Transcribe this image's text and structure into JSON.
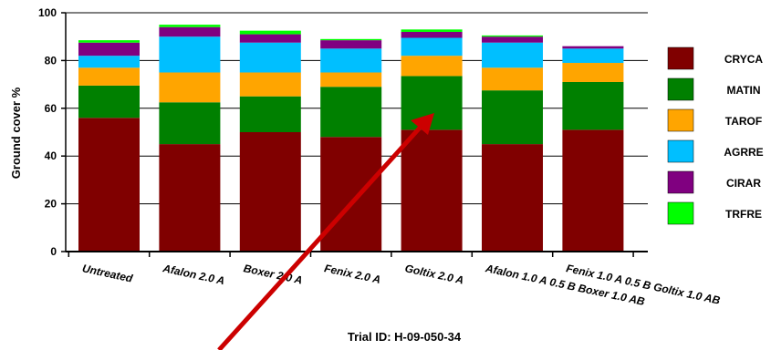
{
  "chart_data": {
    "type": "bar",
    "stacked": true,
    "title": "",
    "ylabel": "Ground cover %",
    "xlabel": "Trial ID: H-09-050-34",
    "ylim": [
      0,
      100
    ],
    "yticks": [
      0,
      20,
      40,
      60,
      80,
      100
    ],
    "grid": true,
    "legend_position": "right",
    "categories": [
      "Untreated",
      "Afalon 2.0 A",
      "Boxer 2.0 A",
      "Fenix 2.0 A",
      "Goltix 2.0 A",
      "Afalon 1.0 A 0.5 B Boxer 1.0 AB",
      "Fenix 1.0 A 0.5 B Goltix 1.0 AB"
    ],
    "series": [
      {
        "name": "CRYCA",
        "color": "#800000",
        "values": [
          56,
          45,
          50,
          48,
          51,
          45,
          51
        ]
      },
      {
        "name": "MATIN",
        "color": "#008000",
        "values": [
          13.5,
          17.5,
          15,
          21,
          22.5,
          22.5,
          20
        ]
      },
      {
        "name": "TAROF",
        "color": "#ffa500",
        "values": [
          7.5,
          12.5,
          10,
          6,
          8.5,
          9.5,
          8
        ]
      },
      {
        "name": "AGRRE",
        "color": "#00bfff",
        "values": [
          5,
          15,
          12.5,
          10,
          7.5,
          10.5,
          6
        ]
      },
      {
        "name": "CIRAR",
        "color": "#800080",
        "values": [
          5.5,
          4,
          3.5,
          3.5,
          2.5,
          2.5,
          1
        ]
      },
      {
        "name": "TRFRE",
        "color": "#00ff00",
        "values": [
          1,
          1,
          1.5,
          0.5,
          1,
          0.5,
          0
        ]
      }
    ]
  }
}
